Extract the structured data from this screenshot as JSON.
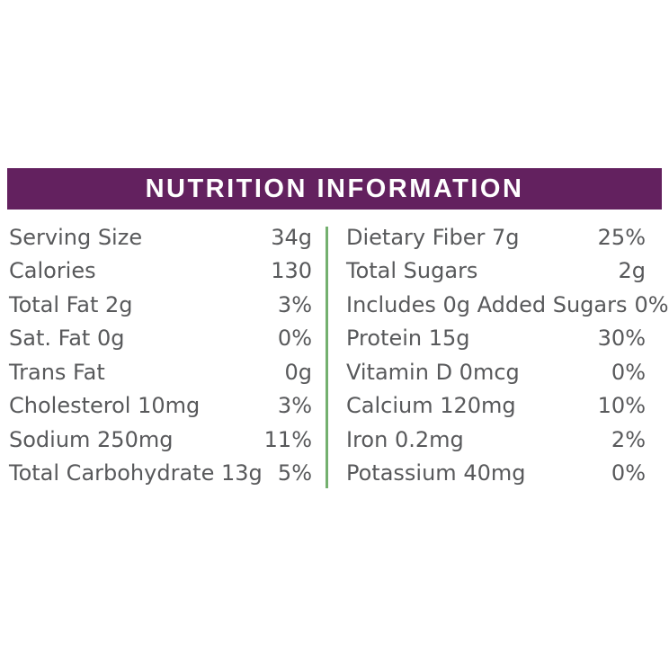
{
  "header": {
    "title": "NUTRITION INFORMATION",
    "bg_color": "#63215F",
    "text_color": "#FFFFFF"
  },
  "table": {
    "divider_color": "#74B06F",
    "text_color": "#58595B",
    "left_column": [
      {
        "label": "Serving Size",
        "value": "34g"
      },
      {
        "label": "Calories",
        "value": "130"
      },
      {
        "label": "Total Fat 2g",
        "value": "3%"
      },
      {
        "label": "Sat. Fat 0g",
        "value": "0%"
      },
      {
        "label": "Trans Fat",
        "value": "0g"
      },
      {
        "label": "Cholesterol 10mg",
        "value": "3%"
      },
      {
        "label": "Sodium 250mg",
        "value": "11%"
      },
      {
        "label": "Total Carbohydrate 13g",
        "value": "5%"
      }
    ],
    "right_column": [
      {
        "label": "Dietary Fiber 7g",
        "value": "25%"
      },
      {
        "label": "Total Sugars",
        "value": "2g"
      },
      {
        "label": "Includes 0g Added Sugars",
        "value": "0%"
      },
      {
        "label": "Protein 15g",
        "value": "30%"
      },
      {
        "label": "Vitamin D 0mcg",
        "value": "0%"
      },
      {
        "label": "Calcium 120mg",
        "value": "10%"
      },
      {
        "label": "Iron 0.2mg",
        "value": "2%"
      },
      {
        "label": "Potassium 40mg",
        "value": "0%"
      }
    ]
  }
}
